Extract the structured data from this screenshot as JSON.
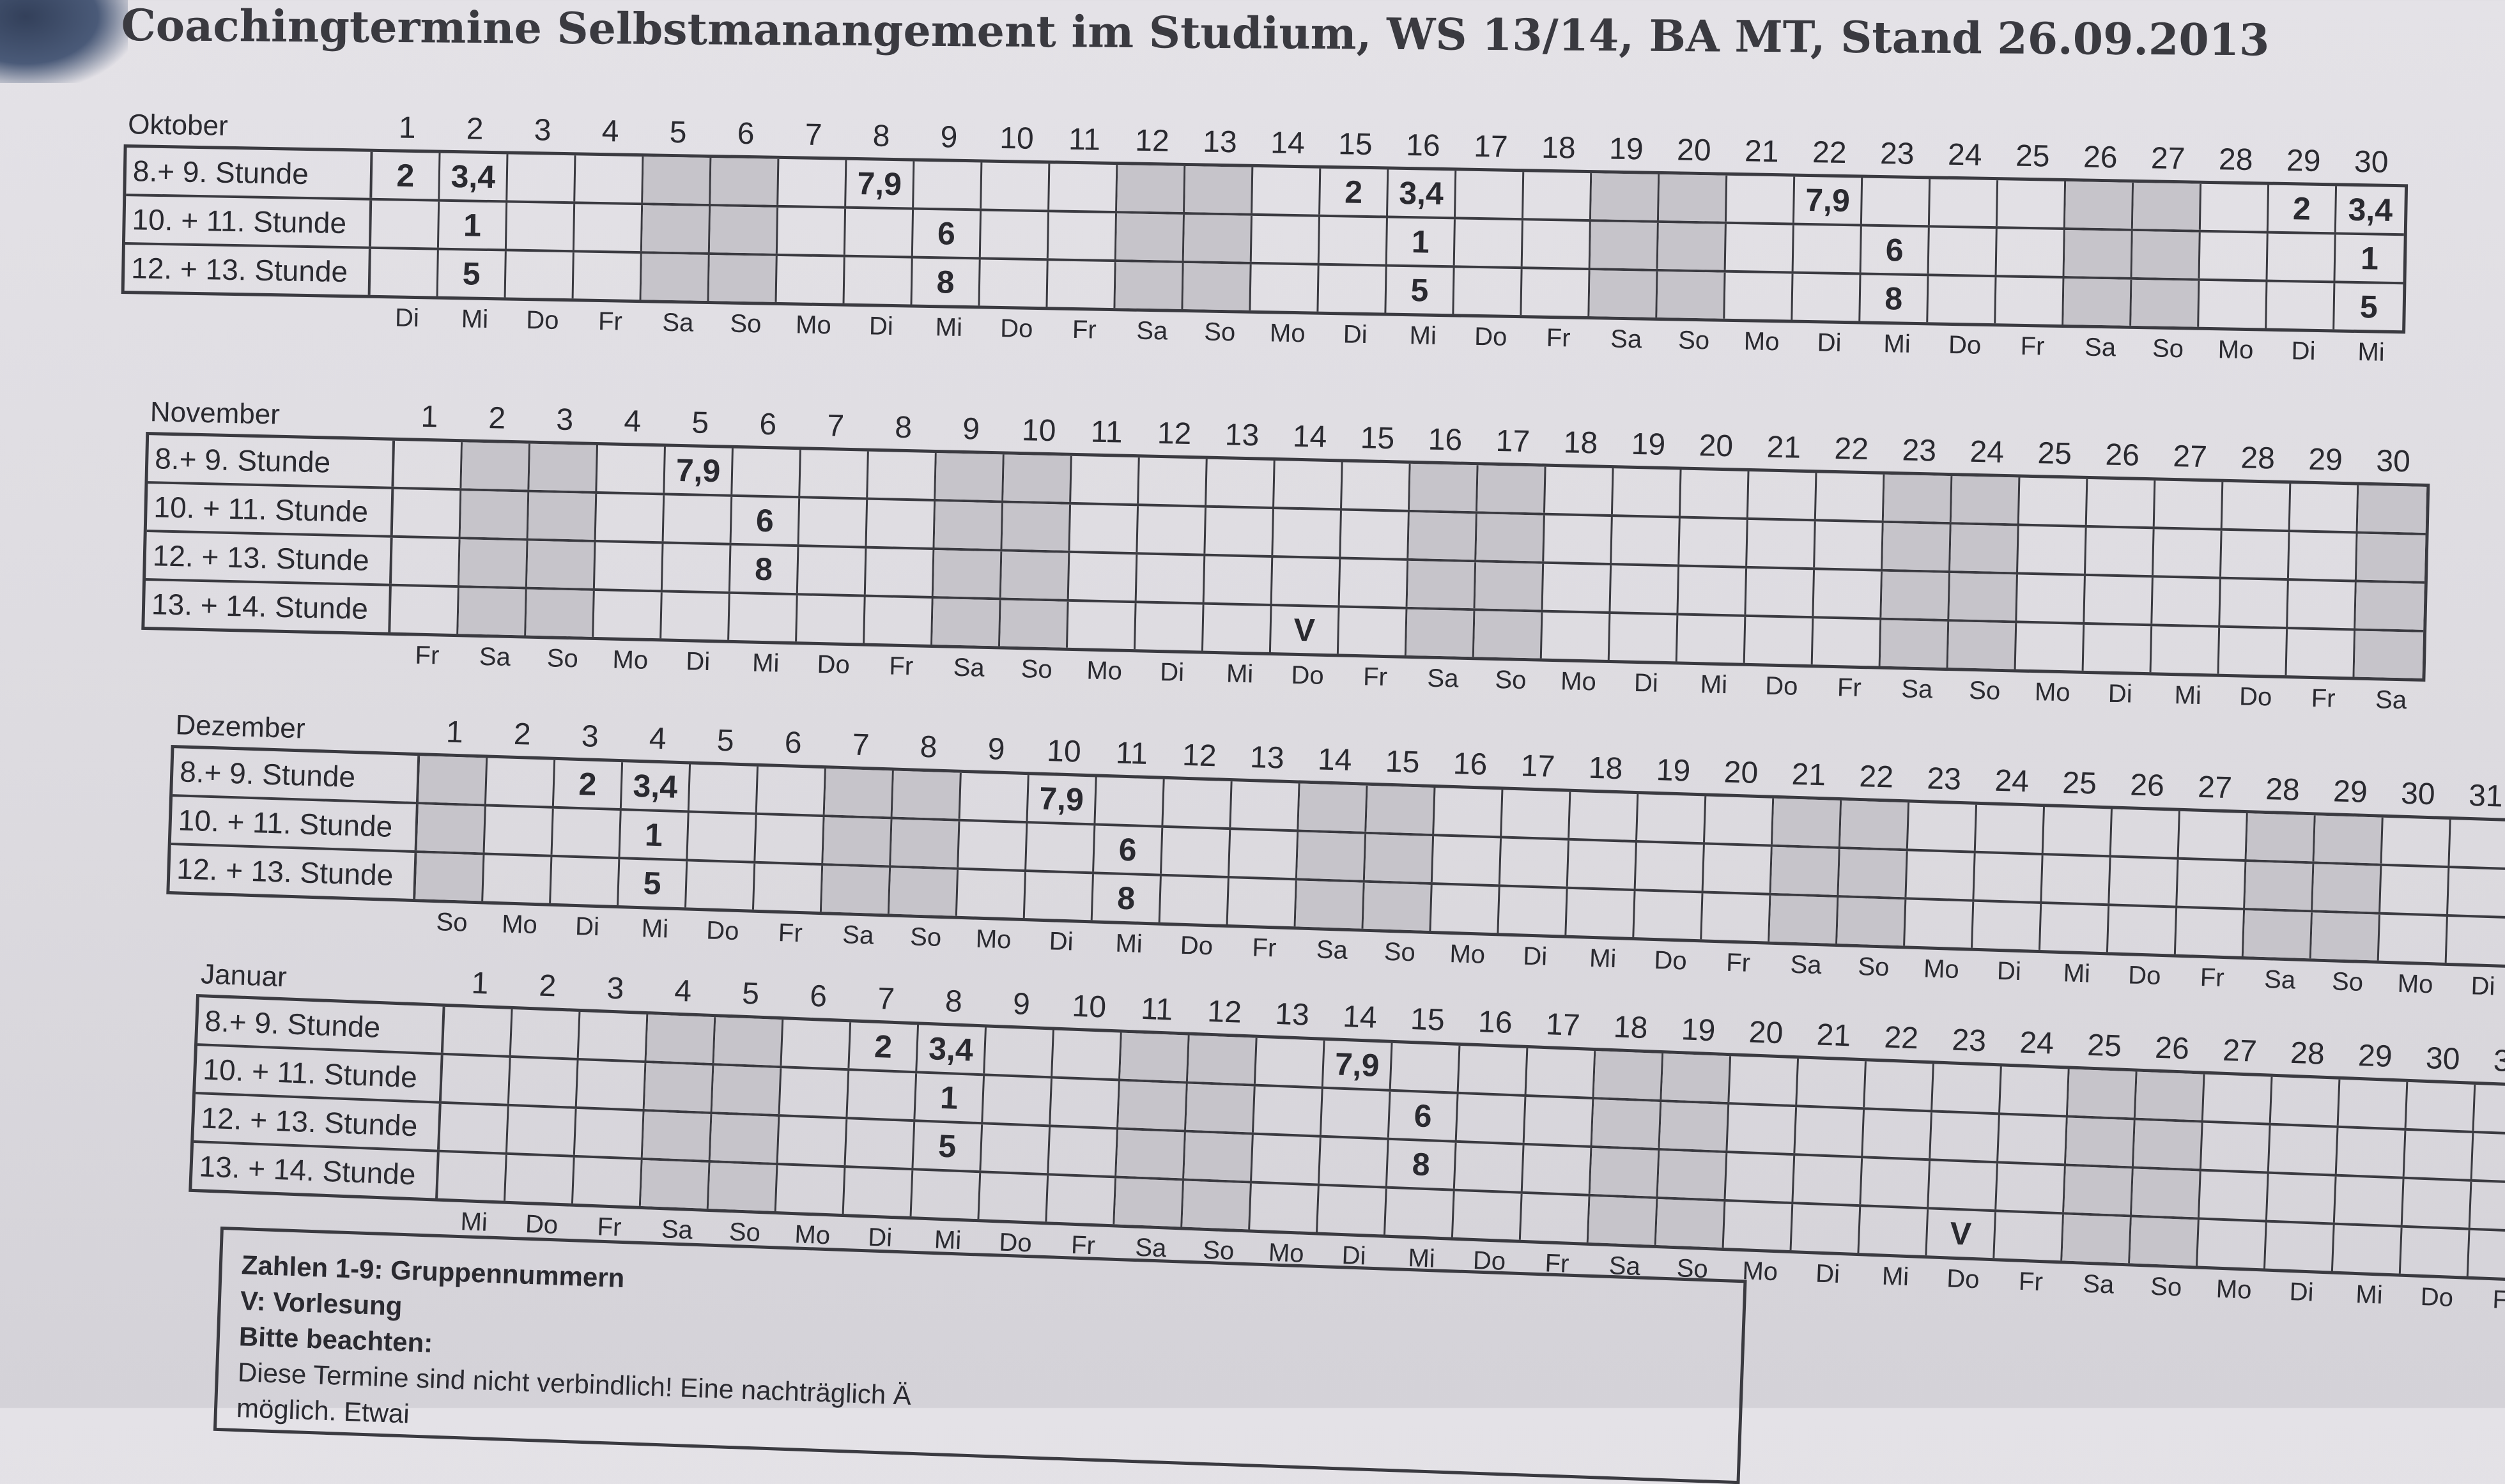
{
  "title": "Coachingtermine Selbstmanangement im Studium, WS 13/14, BA MT, Stand 26.09.2013",
  "weekend_shade": "#c6c4ca",
  "months": [
    {
      "name": "Oktober",
      "days": 30,
      "weekdays": [
        "Di",
        "Mi",
        "Do",
        "Fr",
        "Sa",
        "So",
        "Mo",
        "Di",
        "Mi",
        "Do",
        "Fr",
        "Sa",
        "So",
        "Mo",
        "Di",
        "Mi",
        "Do",
        "Fr",
        "Sa",
        "So",
        "Mo",
        "Di",
        "Mi",
        "Do",
        "Fr",
        "Sa",
        "So",
        "Mo",
        "Di",
        "Mi"
      ],
      "rows": [
        {
          "label": "8.+ 9. Stunde",
          "entries": {
            "1": "2",
            "2": "3,4",
            "8": "7,9",
            "15": "2",
            "16": "3,4",
            "22": "7,9",
            "29": "2",
            "30": "3,4"
          }
        },
        {
          "label": "10. + 11. Stunde",
          "entries": {
            "2": "1",
            "9": "6",
            "16": "1",
            "23": "6",
            "30": "1"
          }
        },
        {
          "label": "12. + 13. Stunde",
          "entries": {
            "2": "5",
            "9": "8",
            "16": "5",
            "23": "8",
            "30": "5"
          }
        }
      ]
    },
    {
      "name": "November",
      "days": 30,
      "weekdays": [
        "Fr",
        "Sa",
        "So",
        "Mo",
        "Di",
        "Mi",
        "Do",
        "Fr",
        "Sa",
        "So",
        "Mo",
        "Di",
        "Mi",
        "Do",
        "Fr",
        "Sa",
        "So",
        "Mo",
        "Di",
        "Mi",
        "Do",
        "Fr",
        "Sa",
        "So",
        "Mo",
        "Di",
        "Mi",
        "Do",
        "Fr",
        "Sa"
      ],
      "rows": [
        {
          "label": "8.+ 9. Stunde",
          "entries": {
            "5": "7,9"
          }
        },
        {
          "label": "10. + 11. Stunde",
          "entries": {
            "6": "6"
          }
        },
        {
          "label": "12. + 13. Stunde",
          "entries": {
            "6": "8"
          }
        },
        {
          "label": "13. + 14. Stunde",
          "entries": {
            "14": "V"
          }
        }
      ]
    },
    {
      "name": "Dezember",
      "days": 31,
      "weekdays": [
        "So",
        "Mo",
        "Di",
        "Mi",
        "Do",
        "Fr",
        "Sa",
        "So",
        "Mo",
        "Di",
        "Mi",
        "Do",
        "Fr",
        "Sa",
        "So",
        "Mo",
        "Di",
        "Mi",
        "Do",
        "Fr",
        "Sa",
        "So",
        "Mo",
        "Di",
        "Mi",
        "Do",
        "Fr",
        "Sa",
        "So",
        "Mo",
        "Di"
      ],
      "rows": [
        {
          "label": "8.+ 9. Stunde",
          "entries": {
            "3": "2",
            "4": "3,4",
            "10": "7,9"
          }
        },
        {
          "label": "10. + 11. Stunde",
          "entries": {
            "4": "1",
            "11": "6"
          }
        },
        {
          "label": "12. + 13. Stunde",
          "entries": {
            "4": "5",
            "11": "8"
          }
        }
      ]
    },
    {
      "name": "Januar",
      "days": 31,
      "weekdays": [
        "Mi",
        "Do",
        "Fr",
        "Sa",
        "So",
        "Mo",
        "Di",
        "Mi",
        "Do",
        "Fr",
        "Sa",
        "So",
        "Mo",
        "Di",
        "Mi",
        "Do",
        "Fr",
        "Sa",
        "So",
        "Mo",
        "Di",
        "Mi",
        "Do",
        "Fr",
        "Sa",
        "So",
        "Mo",
        "Di",
        "Mi",
        "Do",
        "Fr"
      ],
      "rows": [
        {
          "label": "8.+ 9. Stunde",
          "entries": {
            "7": "2",
            "8": "3,4",
            "14": "7,9"
          }
        },
        {
          "label": "10. + 11. Stunde",
          "entries": {
            "8": "1",
            "15": "6"
          }
        },
        {
          "label": "12. + 13. Stunde",
          "entries": {
            "8": "5",
            "15": "8"
          }
        },
        {
          "label": "13. + 14. Stunde",
          "entries": {
            "23": "V"
          }
        }
      ]
    }
  ],
  "legend": {
    "line1": "Zahlen 1-9: Gruppennummern",
    "line2": "V: Vorlesung",
    "line3": "Bitte beachten:",
    "line4": "Diese Termine sind nicht verbindlich! Eine nachträglich Ä",
    "line5": "möglich. Etwai"
  }
}
